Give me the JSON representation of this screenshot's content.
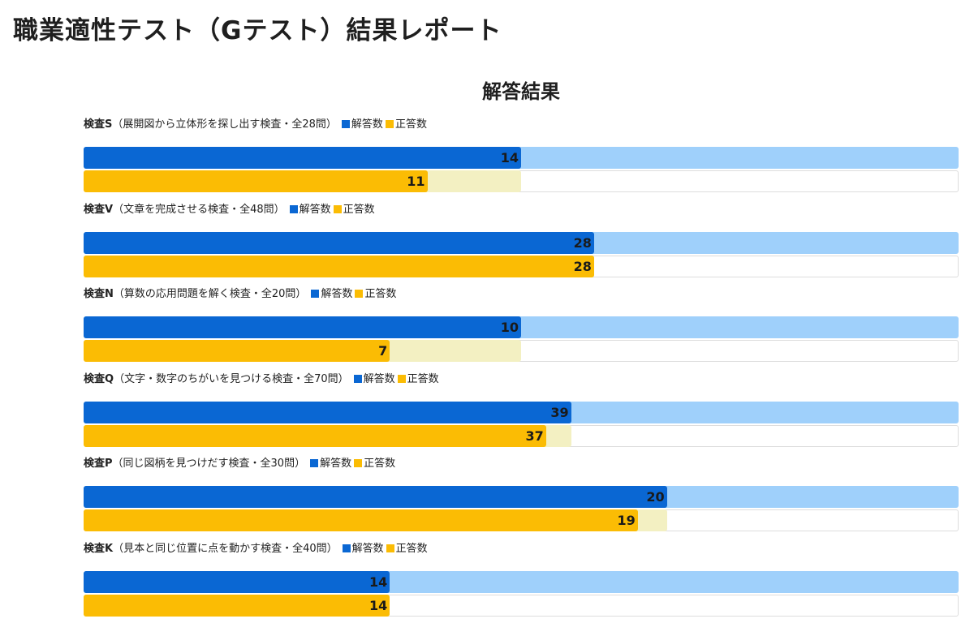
{
  "page": {
    "title": "職業適性テスト（Gテスト）結果レポート"
  },
  "chart_data": {
    "type": "bar",
    "title": "解答結果",
    "legend": {
      "answered": "解答数",
      "correct": "正答数"
    },
    "colors": {
      "answered": "#0a67d3",
      "answered_track": "#9fd0fb",
      "correct": "#fbbc04",
      "correct_track": "#f3f0c2",
      "border": "#dddddd"
    },
    "tests": [
      {
        "name": "検査S",
        "description": "（展開図から立体形を探し出す検査・全28問）",
        "total": 28,
        "answered": 14,
        "correct": 11
      },
      {
        "name": "検査V",
        "description": "（文章を完成させる検査・全48問）",
        "total": 48,
        "answered": 28,
        "correct": 28
      },
      {
        "name": "検査N",
        "description": "（算数の応用問題を解く検査・全20問）",
        "total": 20,
        "answered": 10,
        "correct": 7
      },
      {
        "name": "検査Q",
        "description": "（文字・数字のちがいを見つける検査・全70問）",
        "total": 70,
        "answered": 39,
        "correct": 37
      },
      {
        "name": "検査P",
        "description": "（同じ図柄を見つけだす検査・全30問）",
        "total": 30,
        "answered": 20,
        "correct": 19
      },
      {
        "name": "検査K",
        "description": "（見本と同じ位置に点を動かす検査・全40問）",
        "total": 40,
        "answered": 14,
        "correct": 14
      }
    ]
  }
}
